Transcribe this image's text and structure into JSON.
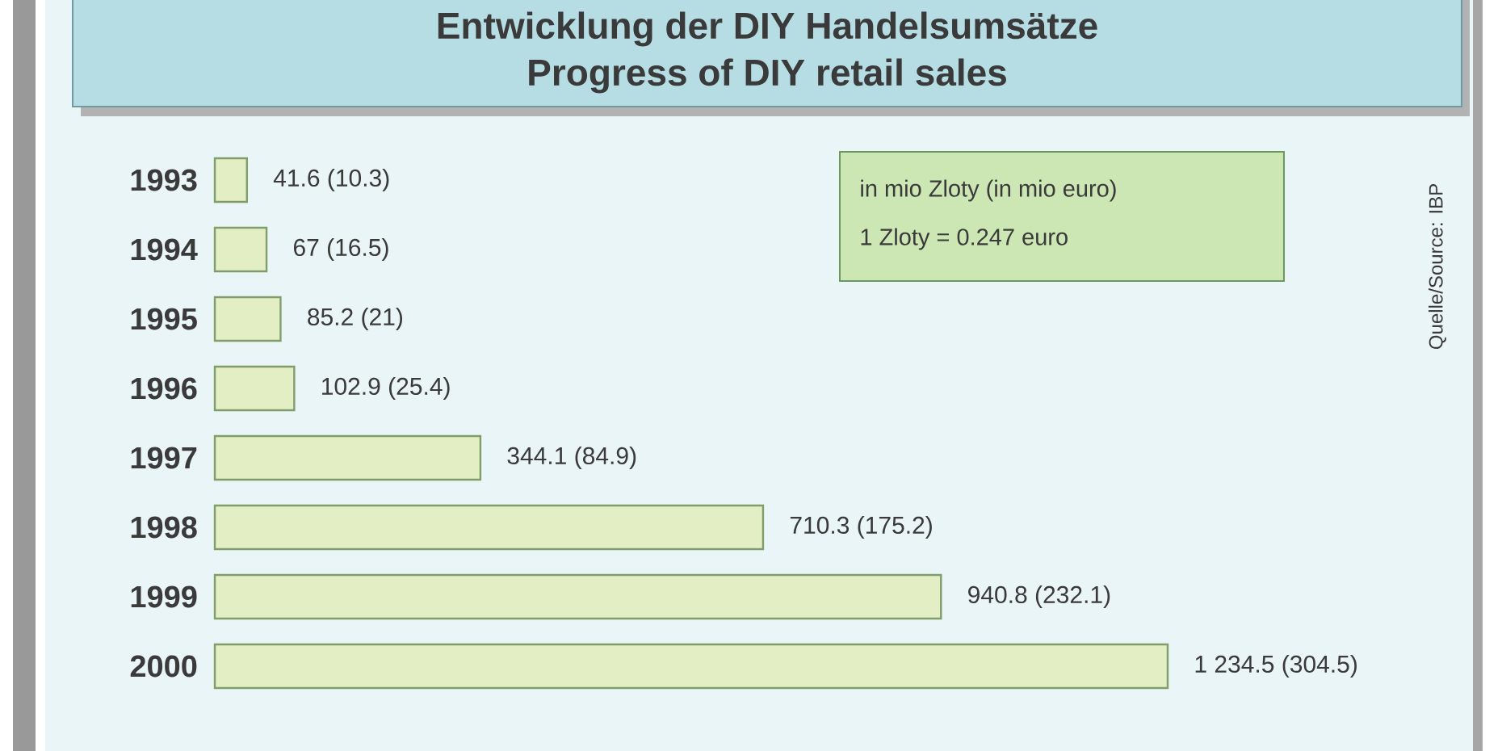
{
  "chart_data": {
    "type": "bar",
    "orientation": "horizontal",
    "title": "Entwicklung der DIY Handelsumsätze",
    "subtitle": "Progress of DIY retail sales",
    "categories": [
      "1993",
      "1994",
      "1995",
      "1996",
      "1997",
      "1998",
      "1999",
      "2000"
    ],
    "values": [
      41.6,
      67,
      85.2,
      102.9,
      344.1,
      710.3,
      940.8,
      1234.5
    ],
    "value_labels": [
      "41.6 (10.3)",
      "67 (16.5)",
      "85.2 (21)",
      "102.9 (25.4)",
      "344.1 (84.9)",
      "710.3 (175.2)",
      "940.8 (232.1)",
      "1 234.5 (304.5)"
    ],
    "color": "#e3eec4",
    "tick_labels": "y",
    "annotations": [
      "in mio Zloty (in mio euro)",
      "1 Zloty = 0.247 euro",
      "Quelle/Source: IBP"
    ]
  }
}
